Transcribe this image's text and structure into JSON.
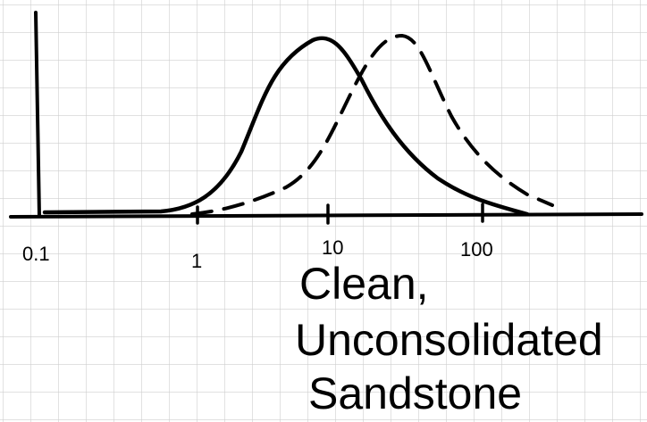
{
  "axis": {
    "tick_labels": [
      "0.1",
      "1",
      "10",
      "100"
    ]
  },
  "caption": {
    "lines": [
      "Clean,",
      "Unconsolidated",
      "Sandstone"
    ]
  }
}
